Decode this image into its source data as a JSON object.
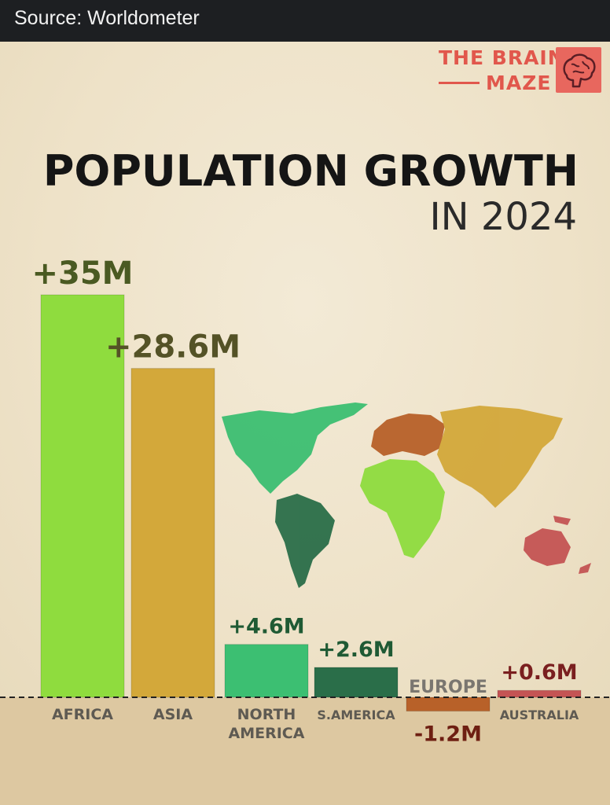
{
  "header": {
    "source": "Source: Worldometer"
  },
  "logo": {
    "line1": "THE BRAIN",
    "line2": "MAZE",
    "icon": "brain-icon",
    "color": "#e1574c"
  },
  "colors": {
    "africa": "#8fdc3e",
    "asia": "#d3a83a",
    "north_america": "#3cbf72",
    "south_america": "#2a6e49",
    "europe": "#b86129",
    "australia": "#c45454"
  },
  "chart_data": {
    "type": "bar",
    "title": "POPULATION GROWTH",
    "subtitle": "IN 2024",
    "categories": [
      "AFRICA",
      "ASIA",
      "NORTH AMERICA",
      "S.AMERICA",
      "EUROPE",
      "AUSTRALIA"
    ],
    "values": [
      35,
      28.6,
      4.6,
      2.6,
      -1.2,
      0.6
    ],
    "value_labels": [
      "+35M",
      "+28.6M",
      "+4.6M",
      "+2.6M",
      "-1.2M",
      "+0.6M"
    ],
    "unit": "M",
    "baseline": 0,
    "grid": false,
    "legend": "none",
    "colors": [
      "#8fdc3e",
      "#d3a83a",
      "#3cbf72",
      "#2a6e49",
      "#b86129",
      "#c45454"
    ],
    "label_colors": [
      "#4a5a22",
      "#545226",
      "#1f5a34",
      "#1f5a34",
      "#6e1f12",
      "#7a1f1f"
    ]
  }
}
